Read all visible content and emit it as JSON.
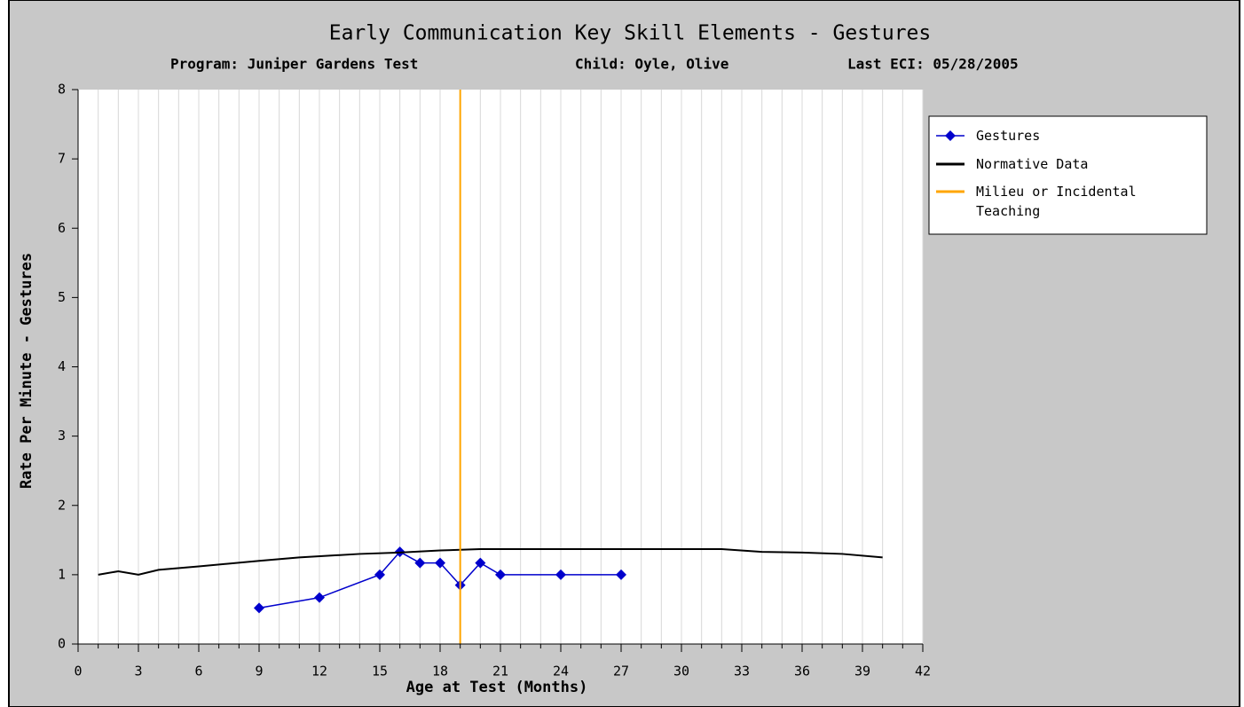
{
  "chart_data": {
    "type": "line",
    "title": "Early Communication Key Skill Elements - Gestures",
    "subtitles": [
      "Program: Juniper Gardens Test",
      "Child: Oyle, Olive",
      "Last ECI: 05/28/2005"
    ],
    "x_label": "Age at Test (Months)",
    "y_label": "Rate Per Minute - Gestures",
    "xlim": [
      0,
      42
    ],
    "ylim": [
      0,
      8
    ],
    "xticks": [
      0,
      3,
      6,
      9,
      12,
      15,
      18,
      21,
      24,
      27,
      30,
      33,
      36,
      39,
      42
    ],
    "xminorticks": [
      0,
      1,
      2,
      3,
      4,
      5,
      6,
      7,
      8,
      9,
      10,
      11,
      12,
      13,
      14,
      15,
      16,
      17,
      18,
      19,
      20,
      21,
      22,
      23,
      24,
      25,
      26,
      27,
      28,
      29,
      30,
      31,
      32,
      33,
      34,
      35,
      36,
      37,
      38,
      39,
      40,
      41,
      42
    ],
    "yticks": [
      0,
      1,
      2,
      3,
      4,
      5,
      6,
      7,
      8
    ],
    "grid": true,
    "legend": "right",
    "series": [
      {
        "name": "Gestures",
        "color": "#0000cc",
        "marker": "diamond",
        "x": [
          9,
          12,
          15,
          16,
          17,
          18,
          19,
          20,
          21,
          24,
          27
        ],
        "values": [
          0.52,
          0.67,
          1.0,
          1.33,
          1.17,
          1.17,
          0.85,
          1.17,
          1.0,
          1.0,
          1.0
        ]
      },
      {
        "name": "Normative Data",
        "color": "#000000",
        "x": [
          1,
          2,
          3,
          4,
          6,
          9,
          11,
          14,
          16,
          18,
          20,
          24,
          28,
          32,
          34,
          36,
          38,
          40
        ],
        "values": [
          1.0,
          1.05,
          1.0,
          1.07,
          1.12,
          1.2,
          1.25,
          1.3,
          1.32,
          1.35,
          1.37,
          1.37,
          1.37,
          1.37,
          1.33,
          1.32,
          1.3,
          1.25
        ]
      },
      {
        "name": "Milieu or Incidental Teaching",
        "color": "#ffa500",
        "vline_x": 19
      }
    ]
  }
}
